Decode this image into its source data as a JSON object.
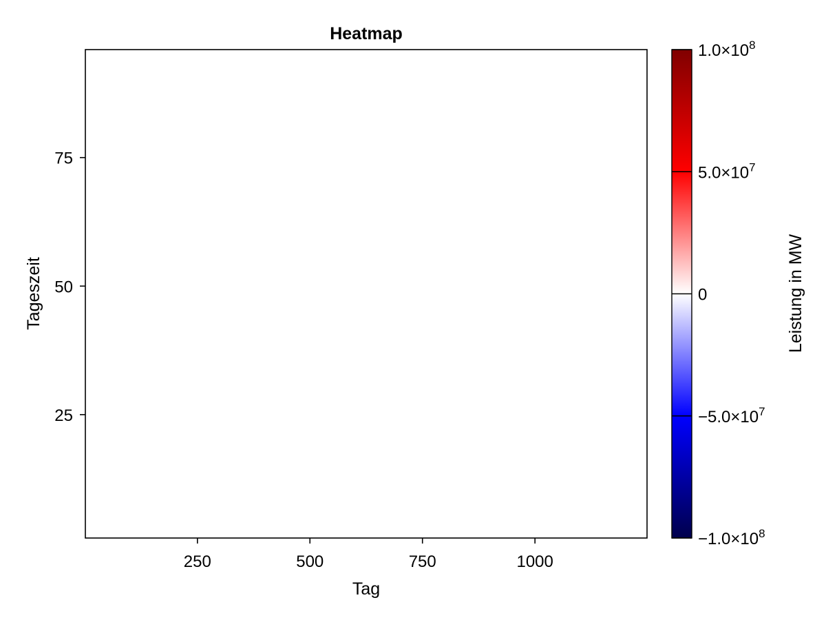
{
  "chart_data": {
    "type": "heatmap",
    "title": "Heatmap",
    "xlabel": "Tag",
    "ylabel": "Tageszeit",
    "xlim": [
      1,
      1249
    ],
    "ylim": [
      1,
      96
    ],
    "xticks": [
      250,
      500,
      750,
      1000
    ],
    "xtick_labels": [
      "250",
      "500",
      "750",
      "1000"
    ],
    "yticks": [
      25,
      50,
      75
    ],
    "ytick_labels": [
      "25",
      "50",
      "75"
    ],
    "values": [],
    "grid": false,
    "colorbar": {
      "label": "Leistung in MW",
      "range": [
        -100000000,
        100000000
      ],
      "ticks": [
        -100000000,
        -50000000,
        0,
        50000000,
        100000000
      ],
      "tick_labels": [
        {
          "mantissa": "−1.0×10",
          "exp": "8"
        },
        {
          "mantissa": "−5.0×10",
          "exp": "7"
        },
        {
          "mantissa": "0",
          "exp": ""
        },
        {
          "mantissa": "5.0×10",
          "exp": "7"
        },
        {
          "mantissa": "1.0×10",
          "exp": "8"
        }
      ],
      "colormap": "seismic",
      "colormap_stops": [
        "#00004c",
        "#0000ff",
        "#ffffff",
        "#ff0000",
        "#800000"
      ]
    }
  }
}
